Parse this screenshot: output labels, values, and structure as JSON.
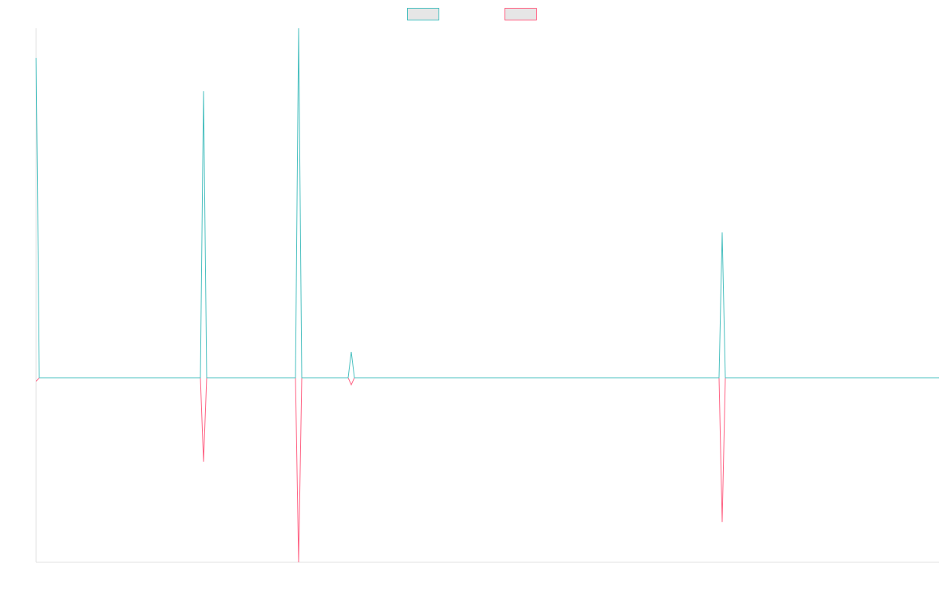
{
  "chart_data": {
    "type": "line",
    "x": [
      0,
      4,
      209,
      213,
      217,
      330,
      334,
      338,
      397,
      401,
      405,
      869,
      873,
      877,
      1149
    ],
    "xlim": [
      0,
      1149
    ],
    "ylim": [
      -52.8,
      100
    ],
    "legend": "top",
    "series": [
      {
        "color": "#4bc0c0",
        "values": [
          91.5,
          0,
          0,
          82,
          0,
          0,
          100,
          0,
          0,
          7.4,
          0,
          0,
          41.6,
          0,
          0
        ]
      },
      {
        "color": "#ff6384",
        "values": [
          -1,
          0,
          0,
          -24,
          0,
          0,
          -52.8,
          0,
          0,
          -2,
          0,
          0,
          -41.3,
          0,
          0
        ]
      }
    ]
  }
}
